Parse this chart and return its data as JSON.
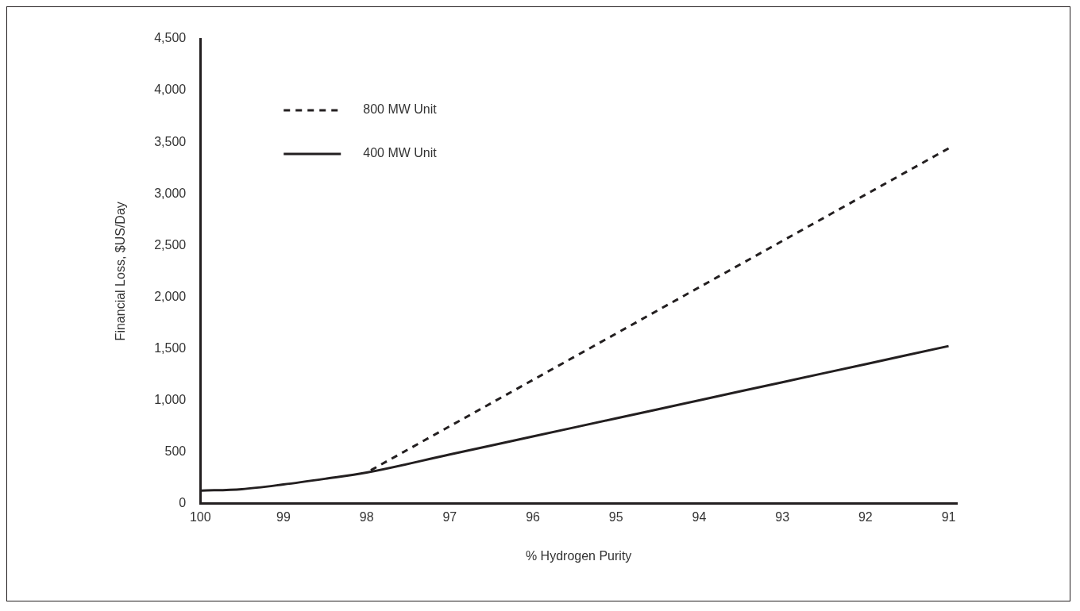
{
  "chart_data": {
    "type": "line",
    "xlabel": "% Hydrogen Purity",
    "ylabel": "Financial Loss, $US/Day",
    "xlim": [
      100,
      90.9
    ],
    "xticks": [
      100,
      99,
      98,
      97,
      96,
      95,
      94,
      93,
      92,
      91
    ],
    "ylim": [
      0,
      4500
    ],
    "yticks": [
      0,
      500,
      {
        "value": 1000,
        "label": "1,000"
      },
      {
        "value": 1500,
        "label": "1,500"
      },
      {
        "value": 2000,
        "label": "2,000"
      },
      {
        "value": 2500,
        "label": "2,500"
      },
      {
        "value": 3000,
        "label": "3,000"
      },
      {
        "value": 3500,
        "label": "3,500"
      },
      {
        "value": 4000,
        "label": "4,000"
      },
      {
        "value": 4500,
        "label": "4,500"
      }
    ],
    "grid": false,
    "legend": "top left",
    "marker": "none",
    "series": [
      {
        "name": "800 MW Unit",
        "color": "#231f20",
        "line_style": "dashed",
        "x": [
          91,
          98
        ],
        "values": [
          3440,
          300
        ]
      },
      {
        "name": "400 MW Unit",
        "color": "#231f20",
        "line_style": "solid",
        "x": [
          100,
          99.5,
          99,
          98.5,
          98,
          97,
          96,
          95,
          94,
          93,
          92,
          91
        ],
        "values": [
          125,
          140,
          185,
          240,
          300,
          475,
          650,
          825,
          1000,
          1175,
          1350,
          1525
        ]
      }
    ]
  }
}
